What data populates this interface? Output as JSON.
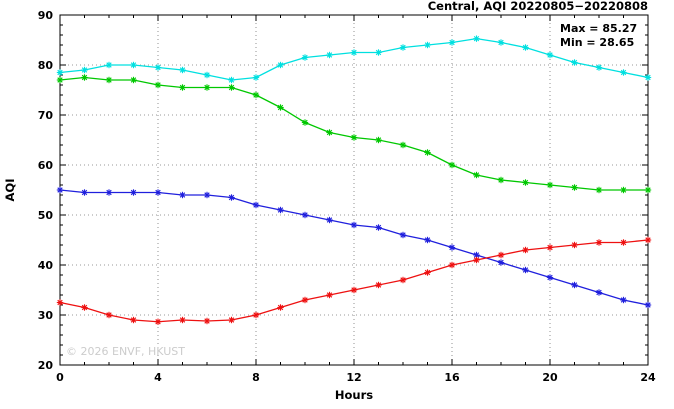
{
  "header": {
    "title": "Central, AQI 20220805−20220808"
  },
  "annotations": {
    "max_label": "Max = 85.27",
    "min_label": "Min = 28.65"
  },
  "watermark": "© 2026 ENVF, HKUST",
  "colors": {
    "series_cyan": "#00e0e0",
    "series_green": "#00c800",
    "series_blue": "#2020dd",
    "series_red": "#ee1111",
    "grid": "#777777",
    "axis": "#000000",
    "watermark": "#cccccc"
  },
  "chart_data": {
    "type": "line",
    "title": "Central, AQI 20220805−20220808",
    "xlabel": "Hours",
    "ylabel": "AQI",
    "xlim": [
      0,
      24
    ],
    "ylim": [
      20,
      90
    ],
    "xticks": [
      0,
      4,
      8,
      12,
      16,
      20,
      24
    ],
    "yticks": [
      20,
      30,
      40,
      50,
      60,
      70,
      80,
      90
    ],
    "grid": true,
    "legend_position": "none",
    "max_value": 85.27,
    "min_value": 28.65,
    "x": [
      0,
      1,
      2,
      3,
      4,
      5,
      6,
      7,
      8,
      9,
      10,
      11,
      12,
      13,
      14,
      15,
      16,
      17,
      18,
      19,
      20,
      21,
      22,
      23,
      24
    ],
    "series": [
      {
        "name": "cyan-series",
        "color": "#00e0e0",
        "values": [
          78.5,
          79,
          80,
          80,
          79.5,
          79,
          78,
          77,
          77.5,
          80,
          81.5,
          82,
          82.5,
          82.5,
          83.5,
          84,
          84.5,
          85.27,
          84.5,
          83.5,
          82,
          80.5,
          79.5,
          78.5,
          77.5
        ]
      },
      {
        "name": "green-series",
        "color": "#00c800",
        "values": [
          77,
          77.5,
          77,
          77,
          76,
          75.5,
          75.5,
          75.5,
          74,
          71.5,
          68.5,
          66.5,
          65.5,
          65,
          64,
          62.5,
          60,
          58,
          57,
          56.5,
          56,
          55.5,
          55,
          55,
          55
        ]
      },
      {
        "name": "blue-series",
        "color": "#2020dd",
        "values": [
          55,
          54.5,
          54.5,
          54.5,
          54.5,
          54,
          54,
          53.5,
          52,
          51,
          50,
          49,
          48,
          47.5,
          46,
          45,
          43.5,
          42,
          40.5,
          39,
          37.5,
          36,
          34.5,
          33,
          32
        ]
      },
      {
        "name": "red-series",
        "color": "#ee1111",
        "values": [
          32.5,
          31.5,
          30,
          29,
          28.65,
          29,
          28.8,
          29,
          30,
          31.5,
          33,
          34,
          35,
          36,
          37,
          38.5,
          40,
          41,
          42,
          43,
          43.5,
          44,
          44.5,
          44.5,
          45
        ]
      }
    ]
  }
}
